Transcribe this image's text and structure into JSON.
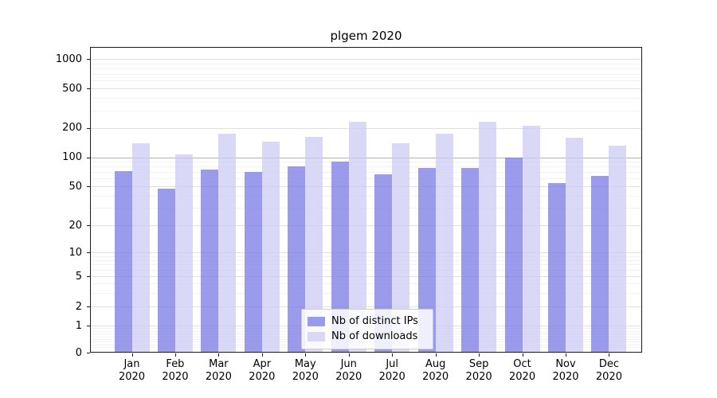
{
  "chart_data": {
    "type": "bar",
    "title": "plgem 2020",
    "categories": [
      "Jan",
      "Feb",
      "Mar",
      "Apr",
      "May",
      "Jun",
      "Jul",
      "Aug",
      "Sep",
      "Oct",
      "Nov",
      "Dec"
    ],
    "category_sublabel": "2020",
    "series": [
      {
        "name": "Nb of distinct IPs",
        "color": "rgba(116,116,228,0.72)",
        "legend_color": "#9b9bec",
        "values": [
          72,
          47,
          75,
          70,
          81,
          90,
          66,
          78,
          77,
          100,
          54,
          64
        ]
      },
      {
        "name": "Nb of downloads",
        "color": "rgba(202,202,244,0.72)",
        "legend_color": "#d9d9f6",
        "values": [
          140,
          106,
          175,
          145,
          160,
          230,
          140,
          175,
          228,
          210,
          158,
          130
        ]
      }
    ],
    "xlabel": "",
    "ylabel": "",
    "y_scale": "symlog",
    "y_ticks": [
      0,
      1,
      2,
      5,
      10,
      20,
      50,
      100,
      200,
      500,
      1000
    ],
    "y_minor_ticks": [
      0.2,
      0.3,
      0.4,
      0.5,
      0.6,
      0.7,
      0.8,
      0.9,
      3,
      4,
      6,
      7,
      8,
      9,
      30,
      40,
      60,
      70,
      80,
      90,
      300,
      400,
      600,
      700,
      800,
      900
    ],
    "ylim": [
      0,
      1300
    ],
    "reference_line": 100,
    "grid": true,
    "legend_position": "lower center"
  }
}
